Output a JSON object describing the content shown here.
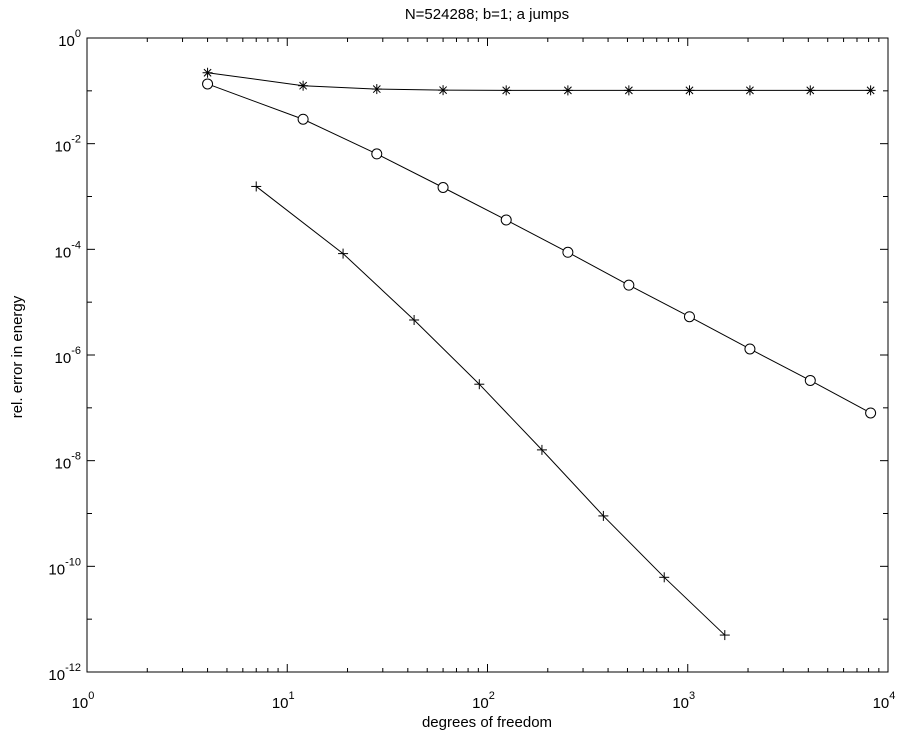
{
  "chart_data": {
    "type": "line",
    "title": "N=524288; b=1; a jumps",
    "xlabel": "degrees of freedom",
    "ylabel": "rel. error in energy",
    "xscale": "log",
    "yscale": "log",
    "xlim": [
      1,
      10000
    ],
    "ylim": [
      1e-12,
      1
    ],
    "grid": false,
    "legend": "none",
    "x_ticks": [
      {
        "value": 1,
        "base": "10",
        "exp": "0"
      },
      {
        "value": 10,
        "base": "10",
        "exp": "1"
      },
      {
        "value": 100,
        "base": "10",
        "exp": "2"
      },
      {
        "value": 1000,
        "base": "10",
        "exp": "3"
      },
      {
        "value": 10000,
        "base": "10",
        "exp": "4"
      }
    ],
    "y_ticks": [
      {
        "value": 1,
        "base": "10",
        "exp": "0"
      },
      {
        "value": 0.01,
        "base": "10",
        "exp": "-2"
      },
      {
        "value": 0.0001,
        "base": "10",
        "exp": "-4"
      },
      {
        "value": 1e-06,
        "base": "10",
        "exp": "-6"
      },
      {
        "value": 1e-08,
        "base": "10",
        "exp": "-8"
      },
      {
        "value": 1e-10,
        "base": "10",
        "exp": "-10"
      },
      {
        "value": 1e-12,
        "base": "10",
        "exp": "-12"
      }
    ],
    "series": [
      {
        "marker": "asterisk",
        "x": [
          4,
          12,
          28,
          60,
          124,
          252,
          508,
          1020,
          2044,
          4092,
          8188
        ],
        "y": [
          0.22,
          0.125,
          0.108,
          0.103,
          0.102,
          0.102,
          0.102,
          0.102,
          0.102,
          0.102,
          0.102
        ]
      },
      {
        "marker": "circle",
        "x": [
          4,
          12,
          28,
          60,
          124,
          252,
          508,
          1020,
          2044,
          4092,
          8188
        ],
        "y": [
          0.135,
          0.029,
          0.0064,
          0.00148,
          0.00036,
          8.8e-05,
          2.1e-05,
          5.3e-06,
          1.3e-06,
          3.3e-07,
          8e-08
        ]
      },
      {
        "marker": "plus",
        "x": [
          7,
          19,
          43,
          91,
          187,
          379,
          763,
          1531
        ],
        "y": [
          0.00155,
          8.3e-05,
          4.6e-06,
          2.8e-07,
          1.6e-08,
          9e-10,
          6.2e-11,
          5e-12
        ]
      }
    ]
  }
}
